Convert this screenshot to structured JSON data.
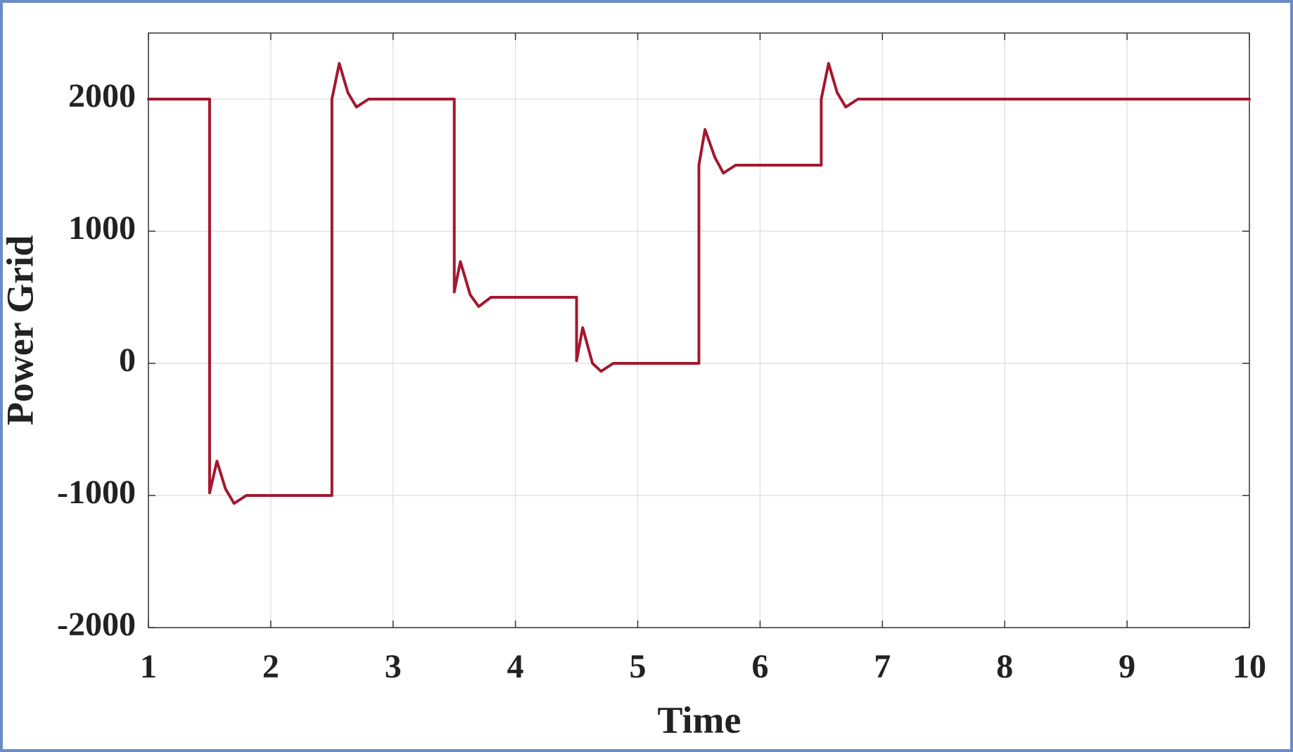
{
  "chart_data": {
    "type": "line",
    "xlabel": "Time",
    "ylabel": "Power Grid",
    "x": [
      1,
      1.5,
      1.5,
      1.56,
      1.63,
      1.7,
      1.8,
      2.5,
      2.5,
      2.56,
      2.63,
      2.7,
      2.8,
      3.5,
      3.5,
      3.55,
      3.63,
      3.7,
      3.8,
      4.5,
      4.5,
      4.55,
      4.63,
      4.7,
      4.8,
      5.5,
      5.5,
      5.55,
      5.63,
      5.7,
      5.8,
      6.5,
      6.5,
      6.56,
      6.63,
      6.7,
      6.8,
      10
    ],
    "values": [
      2000,
      2000,
      -980,
      -740,
      -950,
      -1060,
      -1000,
      -1000,
      2000,
      2270,
      2050,
      1940,
      2000,
      2000,
      540,
      770,
      520,
      430,
      500,
      500,
      20,
      270,
      0,
      -60,
      0,
      0,
      1500,
      1770,
      1560,
      1440,
      1500,
      1500,
      2000,
      2270,
      2050,
      1940,
      2000,
      2000
    ],
    "color": "#a3182f",
    "xlim": [
      1,
      10
    ],
    "xticks": [
      1,
      2,
      3,
      4,
      5,
      6,
      7,
      8,
      9,
      10
    ],
    "ylim": [
      -2000,
      2500
    ],
    "yticks": [
      -2000,
      -1000,
      0,
      1000,
      2000
    ],
    "grid": true
  }
}
